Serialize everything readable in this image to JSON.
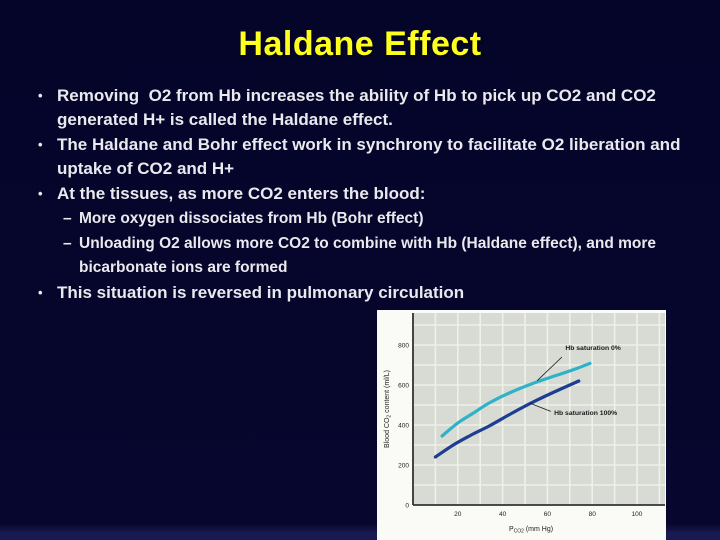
{
  "slide": {
    "title": "Haldane Effect",
    "markers": {
      "level1": "•",
      "level2": "–"
    },
    "bullets": [
      {
        "level": 1,
        "text": "Removing  O2 from Hb increases the ability of Hb to pick up CO2 and CO2 generated H+ is called the Haldane effect."
      },
      {
        "level": 1,
        "text": "The Haldane and Bohr effect work in synchrony to facilitate O2 liberation and uptake of CO2 and H+"
      },
      {
        "level": 1,
        "text": "At the tissues, as more CO2 enters the blood:"
      },
      {
        "level": 2,
        "text": "More oxygen dissociates from Hb (Bohr effect)"
      },
      {
        "level": 2,
        "text": "Unloading O2 allows more CO2 to combine with Hb (Haldane effect), and more bicarbonate ions are formed"
      },
      {
        "level": 1,
        "text": "This situation is reversed in pulmonary circulation"
      }
    ],
    "colors": {
      "background": "#05052a",
      "background_bottom_strip": "#1a1a52",
      "title": "#ffff1e",
      "body_text": "#e9e9ee",
      "figure_background": "#fafaf6",
      "plot_background": "#d7dbd3",
      "grid_line": "#eef0ea",
      "axis_line": "#333333",
      "figure_text": "#1b1b1b",
      "series_0pct": "#2fb2c8",
      "series_100pct": "#1d3d92"
    }
  },
  "chart_data": {
    "type": "line",
    "title": "",
    "xlabel": "PCO2 (mm Hg)",
    "ylabel": "Blood CO2 content (ml/L)",
    "xlabel_parts": [
      [
        "P",
        false
      ],
      [
        "CO2",
        true
      ],
      [
        " (mm Hg)",
        false
      ]
    ],
    "ylabel_parts": [
      [
        "Blood CO",
        false
      ],
      [
        "2",
        true
      ],
      [
        " content (ml/L)",
        false
      ]
    ],
    "xlim": [
      0,
      112.5
    ],
    "ylim": [
      0,
      960
    ],
    "x_ticks": [
      20,
      40,
      60,
      80,
      100
    ],
    "y_ticks": [
      0,
      200,
      400,
      600,
      800
    ],
    "grid": {
      "on": true,
      "x_step": 10,
      "y_step": 100
    },
    "legend_position": "annotations-on-plot",
    "series": [
      {
        "name": "Hb saturation 0%",
        "color": "#2fb2c8",
        "x": [
          13,
          20,
          27,
          34,
          44,
          54,
          64,
          72,
          79
        ],
        "y": [
          345,
          410,
          460,
          510,
          565,
          610,
          648,
          678,
          708
        ]
      },
      {
        "name": "Hb saturation 100%",
        "color": "#1d3d92",
        "x": [
          10,
          18,
          26,
          34,
          44,
          54,
          64,
          74
        ],
        "y": [
          240,
          300,
          350,
          395,
          458,
          517,
          570,
          620
        ]
      }
    ],
    "annotations": [
      {
        "text": "Hb saturation 0%",
        "text_x": 68,
        "text_y": 775,
        "line": [
          66.5,
          740,
          55.5,
          622
        ]
      },
      {
        "text": "Hb saturation 100%",
        "text_x": 63,
        "text_y": 450,
        "line": [
          61.5,
          468,
          52,
          510
        ]
      }
    ]
  }
}
